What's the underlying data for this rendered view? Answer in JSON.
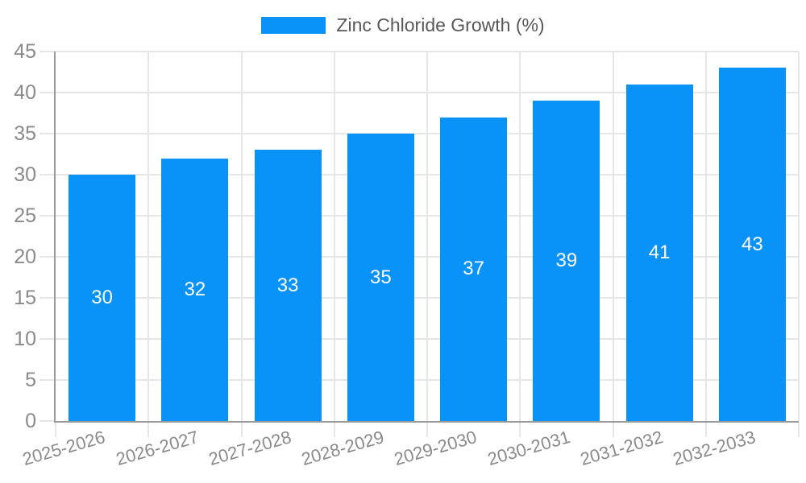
{
  "chart_data": {
    "type": "bar",
    "title": "",
    "series_name": "Zinc Chloride Growth (%)",
    "categories": [
      "2025-2026",
      "2026-2027",
      "2027-2028",
      "2028-2029",
      "2029-2030",
      "2030-2031",
      "2031-2032",
      "2032-2033"
    ],
    "values": [
      30,
      32,
      33,
      35,
      37,
      39,
      41,
      43
    ],
    "xlabel": "",
    "ylabel": "",
    "ylim": [
      0,
      45
    ],
    "ytick_step": 5,
    "yticks": [
      0,
      5,
      10,
      15,
      20,
      25,
      30,
      35,
      40,
      45
    ],
    "grid": true,
    "legend_position": "top",
    "x_label_rotation_deg": -16,
    "colors": {
      "bar": "#0992F7",
      "value_label": "#FFFFFF",
      "grid": "#E6E6E6",
      "axis": "#9A9A9A",
      "tick_label": "#8A8A8A",
      "legend_text": "#58585A",
      "background": "#FFFFFF"
    }
  }
}
